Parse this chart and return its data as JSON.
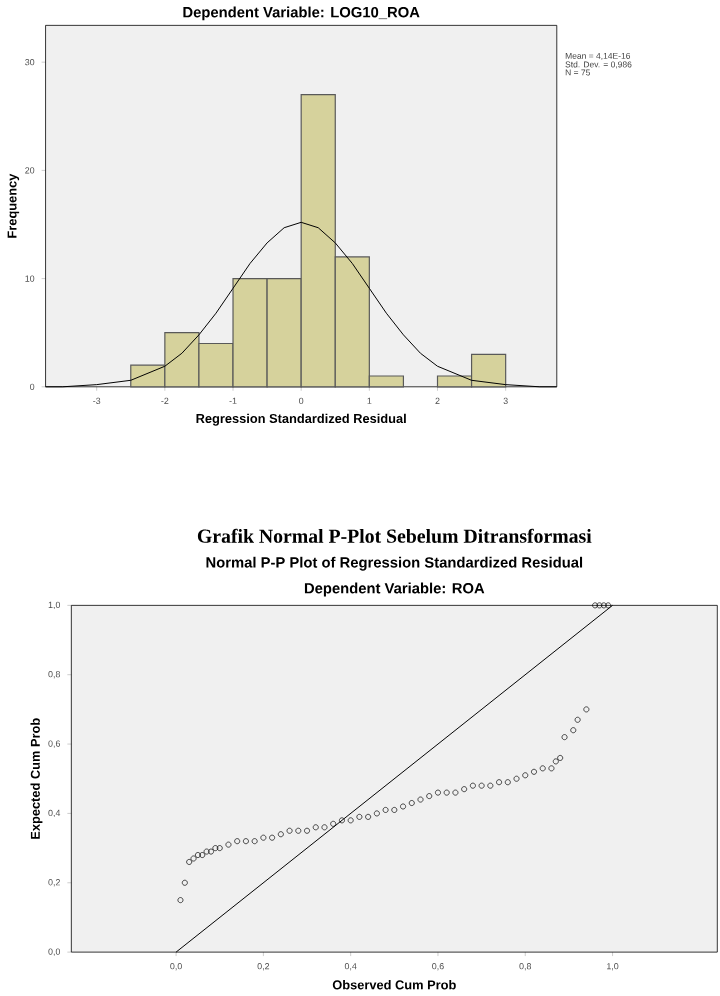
{
  "chart_data": [
    {
      "type": "histogram",
      "title": "Dependent Variable: LOG10_ROA",
      "xlabel": "Regression Standardized Residual",
      "ylabel": "Frequency",
      "annotations": [
        "Mean = 4,14E-16",
        "Std. Dev. = 0,986",
        "N = 75"
      ],
      "xlim": [
        -3.75,
        3.75
      ],
      "ylim": [
        0,
        33.4
      ],
      "xticks": [
        -3,
        -2,
        -1,
        0,
        1,
        2,
        3
      ],
      "yticks": [
        0,
        10,
        20,
        30
      ],
      "series": [
        {
          "color": "#d6d29c",
          "bins": [
            -2.5,
            -2,
            -1.5,
            -1,
            -0.5,
            0,
            0.5,
            1,
            1.5,
            2,
            2.5,
            3
          ],
          "values": [
            2,
            5,
            4,
            10,
            10,
            27,
            12,
            1,
            0,
            1,
            3
          ]
        },
        {
          "type": "line",
          "color": "#000000",
          "x": [
            -3.75,
            -3.5,
            -3,
            -2.5,
            -2,
            -1.75,
            -1.5,
            -1.25,
            -1,
            -0.75,
            -0.5,
            -0.25,
            0,
            0.25,
            0.5,
            0.75,
            1,
            1.25,
            1.5,
            1.75,
            2,
            2.5,
            3,
            3.5,
            3.75
          ],
          "values": [
            0,
            0,
            0.2,
            0.6,
            1.9,
            3.1,
            4.8,
            6.8,
            9.1,
            11.4,
            13.3,
            14.7,
            15.2,
            14.7,
            13.3,
            11.4,
            9.1,
            6.8,
            4.8,
            3.1,
            1.9,
            0.6,
            0.2,
            0,
            0
          ]
        }
      ]
    },
    {
      "type": "scatter",
      "title": "Grafik Normal P-Plot Sebelum Ditransformasi",
      "subtitle": "Normal P-P Plot of Regression Standardized Residual",
      "xlabel": "Observed Cum Prob",
      "ylabel": "Expected Cum Prob",
      "annotations": [
        "Dependent Variable: ROA"
      ],
      "marker": "circle",
      "xlim": [
        -0.24,
        1.24
      ],
      "ylim": [
        0,
        1
      ],
      "xticks": [
        {
          "value": 0,
          "label": "0,0"
        },
        {
          "value": 0.2,
          "label": "0,2"
        },
        {
          "value": 0.4,
          "label": "0,4"
        },
        {
          "value": 0.6,
          "label": "0,6"
        },
        {
          "value": 0.8,
          "label": "0,8"
        },
        {
          "value": 1,
          "label": "1,0"
        }
      ],
      "yticks": [
        {
          "value": 0,
          "label": "0,0"
        },
        {
          "value": 0.2,
          "label": "0,2"
        },
        {
          "value": 0.4,
          "label": "0,4"
        },
        {
          "value": 0.6,
          "label": "0,6"
        },
        {
          "value": 0.8,
          "label": "0,8"
        },
        {
          "value": 1,
          "label": "1,0"
        }
      ],
      "series": [
        {
          "color": "#000000",
          "x": [
            0.01,
            0.02,
            0.03,
            0.04,
            0.05,
            0.06,
            0.07,
            0.08,
            0.09,
            0.1,
            0.12,
            0.14,
            0.16,
            0.18,
            0.2,
            0.22,
            0.24,
            0.26,
            0.28,
            0.3,
            0.32,
            0.34,
            0.36,
            0.38,
            0.4,
            0.42,
            0.44,
            0.46,
            0.48,
            0.5,
            0.52,
            0.54,
            0.56,
            0.58,
            0.6,
            0.62,
            0.64,
            0.66,
            0.68,
            0.7,
            0.72,
            0.74,
            0.76,
            0.78,
            0.8,
            0.82,
            0.84,
            0.86,
            0.87,
            0.88,
            0.89,
            0.91,
            0.92,
            0.94,
            0.96,
            0.97,
            0.98,
            0.99
          ],
          "values": [
            0.15,
            0.2,
            0.26,
            0.27,
            0.28,
            0.28,
            0.29,
            0.29,
            0.3,
            0.3,
            0.31,
            0.32,
            0.32,
            0.32,
            0.33,
            0.33,
            0.34,
            0.35,
            0.35,
            0.35,
            0.36,
            0.36,
            0.37,
            0.38,
            0.38,
            0.39,
            0.39,
            0.4,
            0.41,
            0.41,
            0.42,
            0.43,
            0.44,
            0.45,
            0.46,
            0.46,
            0.46,
            0.47,
            0.48,
            0.48,
            0.48,
            0.49,
            0.49,
            0.5,
            0.51,
            0.52,
            0.53,
            0.53,
            0.55,
            0.56,
            0.62,
            0.64,
            0.67,
            0.7,
            1.0,
            1.0,
            1.0,
            1.0
          ]
        },
        {
          "type": "line",
          "marker": "none",
          "color": "#000000",
          "x": [
            0,
            1
          ],
          "values": [
            0,
            1
          ]
        }
      ]
    }
  ]
}
